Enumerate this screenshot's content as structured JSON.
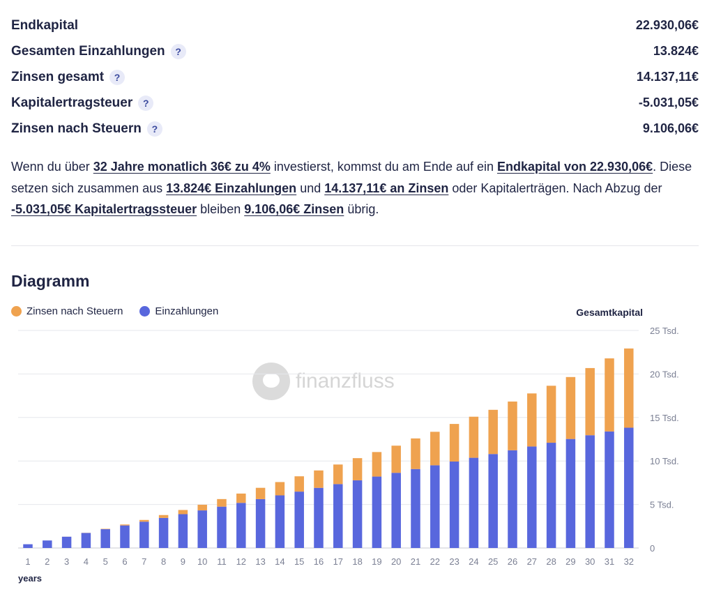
{
  "summary": {
    "rows": [
      {
        "label": "Endkapital",
        "value": "22.930,06€",
        "help": ""
      },
      {
        "label": "Gesamten Einzahlungen",
        "value": "13.824€",
        "help": "?"
      },
      {
        "label": "Zinsen gesamt",
        "value": "14.137,11€",
        "help": "?"
      },
      {
        "label": "Kapitalertragsteuer",
        "value": "-5.031,05€",
        "help": "?"
      },
      {
        "label": "Zinsen nach Steuern",
        "value": "9.106,06€",
        "help": "?"
      }
    ]
  },
  "paragraph": {
    "t1": "Wenn du über ",
    "h1": "32 Jahre monatlich 36€ zu 4%",
    "t2": " investierst, kommst du am Ende auf ein ",
    "h2": "Endkapital von 22.930,06€",
    "t3": ". Diese setzen sich zusammen aus ",
    "h3": "13.824€ Einzahlungen",
    "t4": " und ",
    "h4": "14.137,11€ an Zinsen",
    "t5": " oder Kapitalerträgen. Nach Abzug der ",
    "h5": "-5.031,05€ Kapitalertragssteuer",
    "t6": " bleiben ",
    "h6": "9.106,06€ Zinsen",
    "t7": " übrig."
  },
  "section_title": "Diagramm",
  "watermark": "finanzfluss",
  "colors": {
    "interest": "#efa24f",
    "deposits": "#5867dd",
    "grid": "#e6e7ec"
  },
  "chart_data": {
    "type": "bar",
    "stacked": true,
    "legend_position": "top-left",
    "grid": true,
    "title": "",
    "xlabel": "years",
    "ylabel": "Gesamtkapital",
    "ylim": [
      0,
      25000
    ],
    "ytick_labels": [
      "0",
      "5 Tsd.",
      "10 Tsd.",
      "15 Tsd.",
      "20 Tsd.",
      "25 Tsd."
    ],
    "categories": [
      "1",
      "2",
      "3",
      "4",
      "5",
      "6",
      "7",
      "8",
      "9",
      "10",
      "11",
      "12",
      "13",
      "14",
      "15",
      "16",
      "17",
      "18",
      "19",
      "20",
      "21",
      "22",
      "23",
      "24",
      "25",
      "26",
      "27",
      "28",
      "29",
      "30",
      "31",
      "32"
    ],
    "series": [
      {
        "name": "Einzahlungen",
        "color": "#5867dd",
        "values": [
          432,
          864,
          1296,
          1728,
          2160,
          2592,
          3024,
          3456,
          3888,
          4320,
          4752,
          5184,
          5616,
          6048,
          6480,
          6912,
          7344,
          7776,
          8208,
          8640,
          9072,
          9504,
          9936,
          10368,
          10800,
          11232,
          11664,
          12096,
          12528,
          12960,
          13392,
          13824
        ]
      },
      {
        "name": "Zinsen nach Steuern",
        "color": "#efa24f",
        "values": [
          0,
          0,
          5,
          15,
          45,
          110,
          200,
          330,
          480,
          650,
          870,
          1070,
          1300,
          1530,
          1760,
          2000,
          2250,
          2550,
          2820,
          3120,
          3520,
          3850,
          4320,
          4720,
          5080,
          5600,
          6100,
          6550,
          7120,
          7720,
          8400,
          9106
        ]
      }
    ]
  }
}
